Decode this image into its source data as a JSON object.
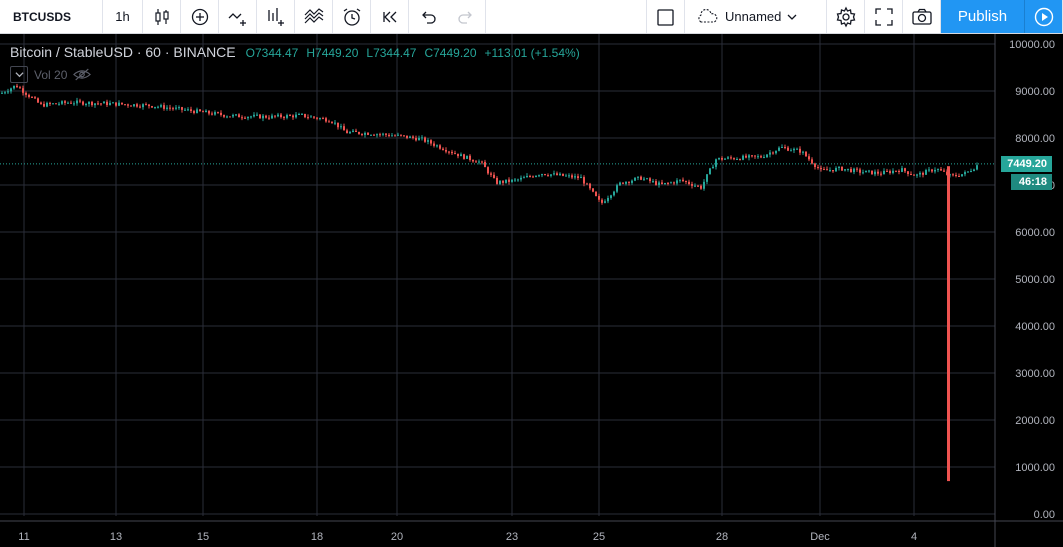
{
  "toolbar": {
    "symbol": "BTCUSDS",
    "interval": "1h",
    "icons": [
      "candles-icon",
      "compare-icon",
      "indicators-icon",
      "financials-icon",
      "templates-icon",
      "alert-icon",
      "replay-icon",
      "undo-icon",
      "redo-icon"
    ],
    "layout_name": "Unnamed",
    "publish_label": "Publish",
    "accent": "#2196f3"
  },
  "legend": {
    "title": "Bitcoin / StableUSD · 60 · BINANCE",
    "open": "O7344.47",
    "high": "H7449.20",
    "low": "L7344.47",
    "close": "C7449.20",
    "change": "+113.01 (+1.54%)"
  },
  "volume_legend": {
    "label": "Vol 20"
  },
  "price_scale": {
    "last_price": "7449.20",
    "countdown": "46:18",
    "up_color": "#26a69a",
    "down_color": "#ef5350"
  },
  "chart_data": {
    "type": "candlestick",
    "ylim": [
      0,
      10000
    ],
    "y_ticks": [
      "10000.00",
      "9000.00",
      "8000.00",
      "7000.00",
      "6000.00",
      "5000.00",
      "4000.00",
      "3000.00",
      "2000.00",
      "1000.00",
      "0.00"
    ],
    "x_ticks": [
      "11",
      "13",
      "15",
      "18",
      "20",
      "23",
      "25",
      "28",
      "Dec",
      "4"
    ],
    "price_points": [
      [
        0,
        8950
      ],
      [
        15,
        9120
      ],
      [
        40,
        8700
      ],
      [
        70,
        8760
      ],
      [
        110,
        8730
      ],
      [
        150,
        8690
      ],
      [
        190,
        8580
      ],
      [
        230,
        8470
      ],
      [
        270,
        8450
      ],
      [
        300,
        8480
      ],
      [
        330,
        8380
      ],
      [
        345,
        8120
      ],
      [
        370,
        8100
      ],
      [
        395,
        8050
      ],
      [
        420,
        7980
      ],
      [
        440,
        7800
      ],
      [
        460,
        7620
      ],
      [
        480,
        7480
      ],
      [
        495,
        7050
      ],
      [
        515,
        7100
      ],
      [
        540,
        7250
      ],
      [
        560,
        7200
      ],
      [
        580,
        7150
      ],
      [
        600,
        6600
      ],
      [
        620,
        7050
      ],
      [
        640,
        7150
      ],
      [
        660,
        7000
      ],
      [
        680,
        7100
      ],
      [
        700,
        6950
      ],
      [
        715,
        7550
      ],
      [
        740,
        7580
      ],
      [
        760,
        7600
      ],
      [
        780,
        7800
      ],
      [
        800,
        7720
      ],
      [
        820,
        7300
      ],
      [
        840,
        7350
      ],
      [
        860,
        7280
      ],
      [
        880,
        7250
      ],
      [
        900,
        7330
      ],
      [
        915,
        7200
      ],
      [
        935,
        7350
      ],
      [
        950,
        7180
      ],
      [
        965,
        7250
      ],
      [
        978,
        7449
      ]
    ],
    "spike_low": 700,
    "last_price": 7449.2
  }
}
